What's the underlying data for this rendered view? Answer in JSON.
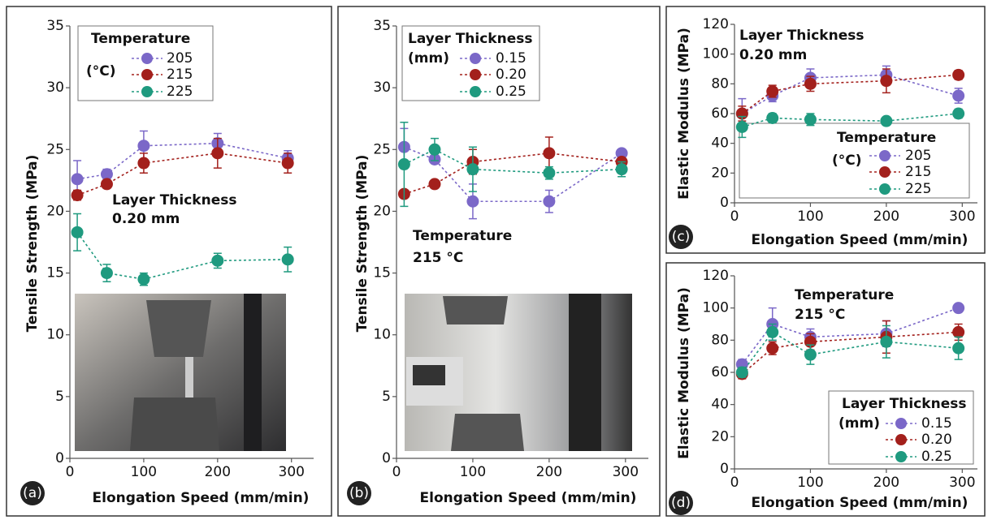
{
  "chart_data": [
    {
      "type": "line",
      "panel_label": "(a)",
      "ylabel": "Tensile Strength (MPa)",
      "xlabel": "Elongation Speed (mm/min)",
      "xlim": [
        0,
        330
      ],
      "ylim": [
        0,
        35
      ],
      "xticks": [
        0,
        100,
        200,
        300
      ],
      "yticks": [
        0,
        5,
        10,
        15,
        20,
        25,
        30,
        35
      ],
      "x": [
        10,
        50,
        100,
        200,
        295
      ],
      "legend_title": [
        "Temperature",
        "(°C)"
      ],
      "annotation": [
        "Layer Thickness",
        "0.20 mm"
      ],
      "series": [
        {
          "name": "205",
          "color": "#7b68c8",
          "values": [
            22.6,
            23.0,
            25.3,
            25.5,
            24.3
          ],
          "errors": [
            1.5,
            0.4,
            1.2,
            0.8,
            0.6
          ]
        },
        {
          "name": "215",
          "color": "#a3201c",
          "values": [
            21.3,
            22.2,
            23.9,
            24.7,
            23.9
          ],
          "errors": [
            0.4,
            0.3,
            0.8,
            1.2,
            0.8
          ]
        },
        {
          "name": "225",
          "color": "#1f9a7f",
          "values": [
            18.3,
            15.0,
            14.5,
            16.0,
            16.1
          ],
          "errors": [
            1.5,
            0.7,
            0.5,
            0.6,
            1.0
          ]
        }
      ]
    },
    {
      "type": "line",
      "panel_label": "(b)",
      "ylabel": "Tensile Strength (MPa)",
      "xlabel": "Elongation Speed (mm/min)",
      "xlim": [
        0,
        330
      ],
      "ylim": [
        0,
        35
      ],
      "xticks": [
        0,
        100,
        200,
        300
      ],
      "yticks": [
        0,
        5,
        10,
        15,
        20,
        25,
        30,
        35
      ],
      "x": [
        10,
        50,
        100,
        200,
        295
      ],
      "legend_title": [
        "Layer Thickness",
        "(mm)"
      ],
      "annotation": [
        "Temperature",
        "215 °C"
      ],
      "series": [
        {
          "name": "0.15",
          "color": "#7b68c8",
          "values": [
            25.2,
            24.2,
            20.8,
            20.8,
            24.7
          ],
          "errors": [
            1.5,
            0.3,
            1.4,
            0.9,
            0.3
          ]
        },
        {
          "name": "0.20",
          "color": "#a3201c",
          "values": [
            21.4,
            22.2,
            24.0,
            24.7,
            24.0
          ],
          "errors": [
            0.3,
            0.3,
            1.0,
            1.3,
            0.3
          ]
        },
        {
          "name": "0.25",
          "color": "#1f9a7f",
          "values": [
            23.8,
            25.0,
            23.4,
            23.1,
            23.4
          ],
          "errors": [
            3.4,
            0.9,
            1.8,
            0.5,
            0.6
          ]
        }
      ]
    },
    {
      "type": "line",
      "panel_label": "(c)",
      "ylabel": "Elastic Modulus (MPa)",
      "xlabel": "Elongation Speed (mm/min)",
      "xlim": [
        0,
        320
      ],
      "ylim": [
        0,
        120
      ],
      "xticks": [
        0,
        100,
        200,
        300
      ],
      "yticks": [
        0,
        20,
        40,
        60,
        80,
        100,
        120
      ],
      "x": [
        10,
        50,
        100,
        200,
        295
      ],
      "legend_title": [
        "Temperature",
        "(°C)"
      ],
      "annotation": [
        "Layer Thickness",
        "0.20 mm"
      ],
      "series": [
        {
          "name": "205",
          "color": "#7b68c8",
          "values": [
            60,
            72,
            84,
            86,
            72
          ],
          "errors": [
            10,
            4,
            6,
            6,
            5
          ]
        },
        {
          "name": "215",
          "color": "#a3201c",
          "values": [
            60,
            75,
            80,
            82,
            86
          ],
          "errors": [
            5,
            4,
            5,
            8,
            3
          ]
        },
        {
          "name": "225",
          "color": "#1f9a7f",
          "values": [
            51,
            57,
            56,
            55,
            60
          ],
          "errors": [
            7,
            3,
            4,
            2,
            3
          ]
        }
      ]
    },
    {
      "type": "line",
      "panel_label": "(d)",
      "ylabel": "Elastic Modulus (MPa)",
      "xlabel": "Elongation Speed (mm/min)",
      "xlim": [
        0,
        320
      ],
      "ylim": [
        0,
        120
      ],
      "xticks": [
        0,
        100,
        200,
        300
      ],
      "yticks": [
        0,
        20,
        40,
        60,
        80,
        100,
        120
      ],
      "x": [
        10,
        50,
        100,
        200,
        295
      ],
      "legend_title": [
        "Layer Thickness",
        "(mm)"
      ],
      "annotation": [
        "Temperature",
        "215 °C"
      ],
      "series": [
        {
          "name": "0.15",
          "color": "#7b68c8",
          "values": [
            65,
            90,
            82,
            84,
            100
          ],
          "errors": [
            3,
            10,
            5,
            8,
            1
          ]
        },
        {
          "name": "0.20",
          "color": "#a3201c",
          "values": [
            59,
            75,
            79,
            82,
            85
          ],
          "errors": [
            3,
            4,
            5,
            10,
            5
          ]
        },
        {
          "name": "0.25",
          "color": "#1f9a7f",
          "values": [
            60,
            85,
            71,
            79,
            75
          ],
          "errors": [
            3,
            5,
            6,
            10,
            7
          ]
        }
      ]
    }
  ]
}
